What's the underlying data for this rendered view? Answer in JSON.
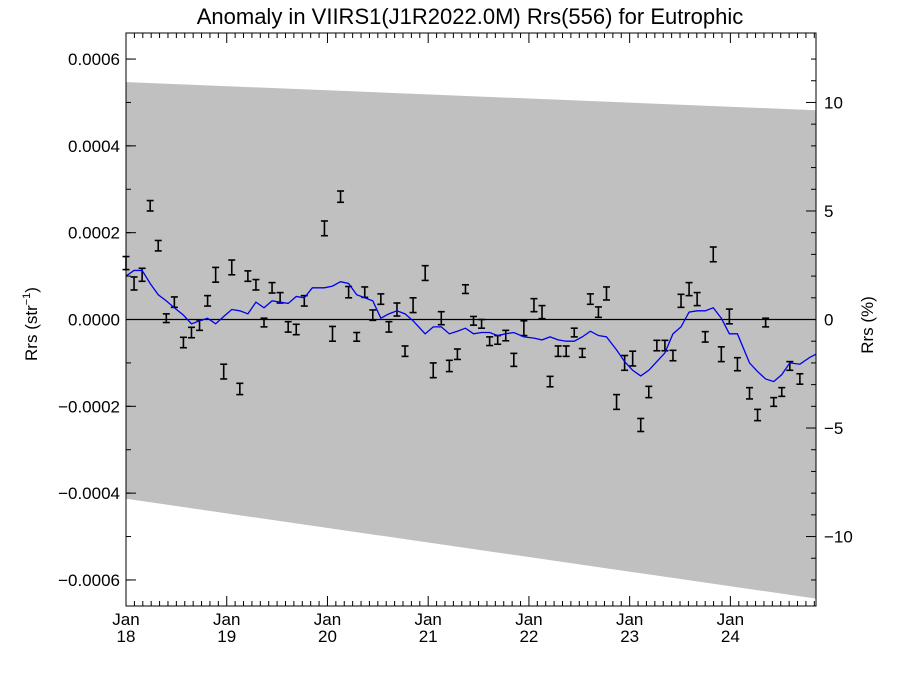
{
  "chart_data": {
    "type": "line",
    "title": "Anomaly in VIIRS1(J1R2022.0M) Rrs(556) for Eutrophic",
    "ylabel_left_main": "Rrs (str",
    "ylabel_left_sup": "−1",
    "ylabel_left_close": ")",
    "ylabel_right": "Rrs (%)",
    "xlim": [
      2018.0,
      2024.85
    ],
    "ylim_left": [
      -0.00066,
      0.00066
    ],
    "ylim_right": [
      -13.2,
      13.2
    ],
    "x_ticks": [
      {
        "month": "Jan",
        "year": "18",
        "x": 2018.0
      },
      {
        "month": "Jan",
        "year": "19",
        "x": 2019.0
      },
      {
        "month": "Jan",
        "year": "20",
        "x": 2020.0
      },
      {
        "month": "Jan",
        "year": "21",
        "x": 2021.0
      },
      {
        "month": "Jan",
        "year": "22",
        "x": 2022.0
      },
      {
        "month": "Jan",
        "year": "23",
        "x": 2023.0
      },
      {
        "month": "Jan",
        "year": "24",
        "x": 2024.0
      }
    ],
    "y_ticks_left": [
      {
        "label": "0.0006",
        "value": 0.0006
      },
      {
        "label": "0.0004",
        "value": 0.0004
      },
      {
        "label": "0.0002",
        "value": 0.0002
      },
      {
        "label": "0.0000",
        "value": 0.0
      },
      {
        "label": "−0.0002",
        "value": -0.0002
      },
      {
        "label": "−0.0004",
        "value": -0.0004
      },
      {
        "label": "−0.0006",
        "value": -0.0006
      }
    ],
    "y_ticks_right": [
      {
        "label": "10",
        "value": 10
      },
      {
        "label": "5",
        "value": 5
      },
      {
        "label": "0",
        "value": 0
      },
      {
        "label": "−5",
        "value": -5
      },
      {
        "label": "−10",
        "value": -10
      }
    ],
    "band": {
      "upper": [
        [
          2018.0,
          0.000547
        ],
        [
          2024.85,
          0.000482
        ]
      ],
      "lower": [
        [
          2018.0,
          -0.000413
        ],
        [
          2024.85,
          -0.000643
        ]
      ],
      "color": "#c0c0c0"
    },
    "zero_line": 0.0,
    "points": [
      {
        "x": 2018.0,
        "y": 0.00013,
        "err": 1.5e-05
      },
      {
        "x": 2018.08,
        "y": 8.3e-05,
        "err": 1.5e-05
      },
      {
        "x": 2018.16,
        "y": 0.000103,
        "err": 1.5e-05
      },
      {
        "x": 2018.24,
        "y": 0.000262,
        "err": 1.2e-05
      },
      {
        "x": 2018.32,
        "y": 0.00017,
        "err": 1.2e-05
      },
      {
        "x": 2018.4,
        "y": 3e-06,
        "err": 1e-05
      },
      {
        "x": 2018.48,
        "y": 4e-05,
        "err": 1.2e-05
      },
      {
        "x": 2018.57,
        "y": -5.3e-05,
        "err": 1.2e-05
      },
      {
        "x": 2018.65,
        "y": -3e-05,
        "err": 1.2e-05
      },
      {
        "x": 2018.73,
        "y": -1.3e-05,
        "err": 1.2e-05
      },
      {
        "x": 2018.81,
        "y": 4.3e-05,
        "err": 1.2e-05
      },
      {
        "x": 2018.89,
        "y": 0.000103,
        "err": 1.7e-05
      },
      {
        "x": 2018.97,
        "y": -0.00012,
        "err": 1.7e-05
      },
      {
        "x": 2019.05,
        "y": 0.00012,
        "err": 1.7e-05
      },
      {
        "x": 2019.13,
        "y": -0.00016,
        "err": 1.3e-05
      },
      {
        "x": 2019.21,
        "y": 0.0001,
        "err": 1.2e-05
      },
      {
        "x": 2019.29,
        "y": 8e-05,
        "err": 1.2e-05
      },
      {
        "x": 2019.37,
        "y": -7e-06,
        "err": 1e-05
      },
      {
        "x": 2019.45,
        "y": 7.3e-05,
        "err": 1.2e-05
      },
      {
        "x": 2019.53,
        "y": 5e-05,
        "err": 1.2e-05
      },
      {
        "x": 2019.61,
        "y": -1.7e-05,
        "err": 1.2e-05
      },
      {
        "x": 2019.69,
        "y": -2.3e-05,
        "err": 1.2e-05
      },
      {
        "x": 2019.77,
        "y": 4.3e-05,
        "err": 1.2e-05
      },
      {
        "x": 2019.97,
        "y": 0.00021,
        "err": 1.7e-05
      },
      {
        "x": 2020.05,
        "y": -3.3e-05,
        "err": 1.7e-05
      },
      {
        "x": 2020.13,
        "y": 0.000283,
        "err": 1.3e-05
      },
      {
        "x": 2020.21,
        "y": 6.3e-05,
        "err": 1.3e-05
      },
      {
        "x": 2020.29,
        "y": -4e-05,
        "err": 1e-05
      },
      {
        "x": 2020.37,
        "y": 6.3e-05,
        "err": 1.2e-05
      },
      {
        "x": 2020.45,
        "y": 1e-05,
        "err": 1.2e-05
      },
      {
        "x": 2020.53,
        "y": 4.7e-05,
        "err": 1.2e-05
      },
      {
        "x": 2020.61,
        "y": -1.7e-05,
        "err": 1.2e-05
      },
      {
        "x": 2020.69,
        "y": 2.3e-05,
        "err": 1.5e-05
      },
      {
        "x": 2020.77,
        "y": -7.3e-05,
        "err": 1.2e-05
      },
      {
        "x": 2020.85,
        "y": 3.3e-05,
        "err": 1.7e-05
      },
      {
        "x": 2020.97,
        "y": 0.000107,
        "err": 1.7e-05
      },
      {
        "x": 2021.05,
        "y": -0.000117,
        "err": 1.7e-05
      },
      {
        "x": 2021.13,
        "y": 3e-06,
        "err": 1.5e-05
      },
      {
        "x": 2021.21,
        "y": -0.000107,
        "err": 1.3e-05
      },
      {
        "x": 2021.29,
        "y": -8e-05,
        "err": 1.2e-05
      },
      {
        "x": 2021.37,
        "y": 7e-05,
        "err": 1e-05
      },
      {
        "x": 2021.45,
        "y": -3e-06,
        "err": 1e-05
      },
      {
        "x": 2021.53,
        "y": -1e-05,
        "err": 1e-05
      },
      {
        "x": 2021.61,
        "y": -5e-05,
        "err": 1e-05
      },
      {
        "x": 2021.69,
        "y": -4.7e-05,
        "err": 1e-05
      },
      {
        "x": 2021.77,
        "y": -3.7e-05,
        "err": 1.2e-05
      },
      {
        "x": 2021.85,
        "y": -9.3e-05,
        "err": 1.5e-05
      },
      {
        "x": 2021.95,
        "y": -2e-05,
        "err": 1.7e-05
      },
      {
        "x": 2022.05,
        "y": 3.3e-05,
        "err": 1.5e-05
      },
      {
        "x": 2022.13,
        "y": 1.7e-05,
        "err": 1.5e-05
      },
      {
        "x": 2022.21,
        "y": -0.000143,
        "err": 1.2e-05
      },
      {
        "x": 2022.29,
        "y": -7.3e-05,
        "err": 1.2e-05
      },
      {
        "x": 2022.37,
        "y": -7.3e-05,
        "err": 1.2e-05
      },
      {
        "x": 2022.45,
        "y": -3e-05,
        "err": 1e-05
      },
      {
        "x": 2022.53,
        "y": -7.7e-05,
        "err": 1e-05
      },
      {
        "x": 2022.61,
        "y": 4.7e-05,
        "err": 1.2e-05
      },
      {
        "x": 2022.69,
        "y": 1.7e-05,
        "err": 1.2e-05
      },
      {
        "x": 2022.77,
        "y": 6e-05,
        "err": 1.5e-05
      },
      {
        "x": 2022.87,
        "y": -0.00019,
        "err": 1.7e-05
      },
      {
        "x": 2022.95,
        "y": -0.0001,
        "err": 1.7e-05
      },
      {
        "x": 2023.03,
        "y": -9e-05,
        "err": 1.7e-05
      },
      {
        "x": 2023.11,
        "y": -0.000243,
        "err": 1.5e-05
      },
      {
        "x": 2023.19,
        "y": -0.000167,
        "err": 1.3e-05
      },
      {
        "x": 2023.27,
        "y": -6e-05,
        "err": 1.2e-05
      },
      {
        "x": 2023.35,
        "y": -6e-05,
        "err": 1.2e-05
      },
      {
        "x": 2023.43,
        "y": -8.3e-05,
        "err": 1.2e-05
      },
      {
        "x": 2023.51,
        "y": 4.3e-05,
        "err": 1.5e-05
      },
      {
        "x": 2023.59,
        "y": 7e-05,
        "err": 1.5e-05
      },
      {
        "x": 2023.67,
        "y": 4.7e-05,
        "err": 1.5e-05
      },
      {
        "x": 2023.75,
        "y": -4e-05,
        "err": 1.2e-05
      },
      {
        "x": 2023.83,
        "y": 0.00015,
        "err": 1.7e-05
      },
      {
        "x": 2023.91,
        "y": -8e-05,
        "err": 1.7e-05
      },
      {
        "x": 2023.99,
        "y": 7e-06,
        "err": 1.7e-05
      },
      {
        "x": 2024.07,
        "y": -0.000103,
        "err": 1.5e-05
      },
      {
        "x": 2024.19,
        "y": -0.00017,
        "err": 1.3e-05
      },
      {
        "x": 2024.27,
        "y": -0.00022,
        "err": 1.3e-05
      },
      {
        "x": 2024.35,
        "y": -7e-06,
        "err": 1e-05
      },
      {
        "x": 2024.43,
        "y": -0.00019,
        "err": 1e-05
      },
      {
        "x": 2024.51,
        "y": -0.000167,
        "err": 1e-05
      },
      {
        "x": 2024.59,
        "y": -0.000107,
        "err": 1e-05
      },
      {
        "x": 2024.69,
        "y": -0.000137,
        "err": 1.2e-05
      }
    ],
    "smooth_line": {
      "color": "#0000ee",
      "points": [
        [
          2018.0,
          0.0001
        ],
        [
          2018.08,
          0.000113
        ],
        [
          2018.16,
          0.000113
        ],
        [
          2018.24,
          8.3e-05
        ],
        [
          2018.32,
          5.7e-05
        ],
        [
          2018.4,
          4.3e-05
        ],
        [
          2018.48,
          2.7e-05
        ],
        [
          2018.57,
          1e-05
        ],
        [
          2018.65,
          -1e-05
        ],
        [
          2018.73,
          -3e-06
        ],
        [
          2018.81,
          3e-06
        ],
        [
          2018.89,
          -1e-05
        ],
        [
          2018.97,
          7e-06
        ],
        [
          2019.05,
          2.3e-05
        ],
        [
          2019.13,
          2e-05
        ],
        [
          2019.21,
          1.3e-05
        ],
        [
          2019.29,
          4e-05
        ],
        [
          2019.37,
          2.7e-05
        ],
        [
          2019.45,
          4.3e-05
        ],
        [
          2019.53,
          4e-05
        ],
        [
          2019.61,
          3.7e-05
        ],
        [
          2019.69,
          5.3e-05
        ],
        [
          2019.77,
          5e-05
        ],
        [
          2019.85,
          7.3e-05
        ],
        [
          2019.97,
          7.3e-05
        ],
        [
          2020.05,
          7.7e-05
        ],
        [
          2020.13,
          8.7e-05
        ],
        [
          2020.21,
          8.3e-05
        ],
        [
          2020.29,
          5.7e-05
        ],
        [
          2020.37,
          5e-05
        ],
        [
          2020.45,
          4.3e-05
        ],
        [
          2020.53,
          3e-06
        ],
        [
          2020.61,
          1.3e-05
        ],
        [
          2020.69,
          2e-05
        ],
        [
          2020.77,
          1.3e-05
        ],
        [
          2020.85,
          -3e-06
        ],
        [
          2020.97,
          -3.3e-05
        ],
        [
          2021.05,
          -1.7e-05
        ],
        [
          2021.13,
          -1.7e-05
        ],
        [
          2021.21,
          -3.3e-05
        ],
        [
          2021.29,
          -2.7e-05
        ],
        [
          2021.37,
          -2e-05
        ],
        [
          2021.45,
          -3.3e-05
        ],
        [
          2021.53,
          -3e-05
        ],
        [
          2021.61,
          -3e-05
        ],
        [
          2021.69,
          -3.7e-05
        ],
        [
          2021.77,
          -3.3e-05
        ],
        [
          2021.85,
          -3e-05
        ],
        [
          2021.95,
          -4e-05
        ],
        [
          2022.05,
          -4.3e-05
        ],
        [
          2022.13,
          -4.7e-05
        ],
        [
          2022.21,
          -4e-05
        ],
        [
          2022.29,
          -4.7e-05
        ],
        [
          2022.37,
          -5e-05
        ],
        [
          2022.45,
          -5e-05
        ],
        [
          2022.53,
          -4e-05
        ],
        [
          2022.61,
          -2.7e-05
        ],
        [
          2022.69,
          -3.7e-05
        ],
        [
          2022.77,
          -4e-05
        ],
        [
          2022.87,
          -7e-05
        ],
        [
          2022.95,
          -9.7e-05
        ],
        [
          2023.03,
          -0.000117
        ],
        [
          2023.11,
          -0.00013
        ],
        [
          2023.19,
          -0.000117
        ],
        [
          2023.27,
          -9.7e-05
        ],
        [
          2023.35,
          -7.7e-05
        ],
        [
          2023.43,
          -3.3e-05
        ],
        [
          2023.51,
          -1.7e-05
        ],
        [
          2023.59,
          1.7e-05
        ],
        [
          2023.67,
          2e-05
        ],
        [
          2023.75,
          2e-05
        ],
        [
          2023.83,
          2.7e-05
        ],
        [
          2023.91,
          3e-06
        ],
        [
          2023.99,
          -3.3e-05
        ],
        [
          2024.07,
          -3.3e-05
        ],
        [
          2024.19,
          -0.0001
        ],
        [
          2024.27,
          -0.00012
        ],
        [
          2024.35,
          -0.000137
        ],
        [
          2024.43,
          -0.000143
        ],
        [
          2024.51,
          -0.000127
        ],
        [
          2024.59,
          -0.0001
        ],
        [
          2024.69,
          -0.000103
        ],
        [
          2024.79,
          -8.7e-05
        ],
        [
          2024.85,
          -8e-05
        ]
      ]
    }
  }
}
